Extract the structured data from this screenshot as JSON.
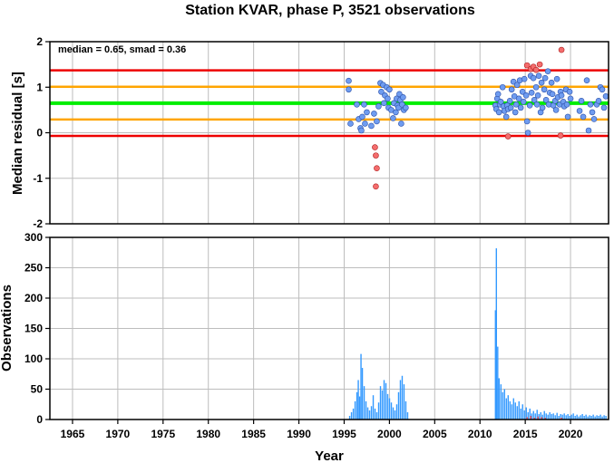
{
  "colors": {
    "blue_point": "#6f9cf0",
    "red_point": "#f46d6d",
    "bar": "#3399ff",
    "bar_red": "#ff5555",
    "median_line": "#00ee00",
    "smad_line": "#ffa500",
    "limit_line": "#ee0000",
    "grid": "#bdbdbd"
  },
  "chart_data": [
    {
      "type": "scatter",
      "title": "Station KVAR, phase P, 3521 observations",
      "ylabel": "Median residual [s]",
      "annotation": "median = 0.65, smad = 0.36",
      "xlim": [
        1962.5,
        2024.2
      ],
      "ylim": [
        -2,
        2
      ],
      "y_ticks": [
        -2,
        -1,
        0,
        1,
        2
      ],
      "grid": true,
      "reference_lines": [
        {
          "role": "median",
          "y": 0.65,
          "color": "#00ee00"
        },
        {
          "role": "smad_upper",
          "y": 1.01,
          "color": "#ffa500"
        },
        {
          "role": "smad_lower",
          "y": 0.29,
          "color": "#ffa500"
        },
        {
          "role": "limit_upper",
          "y": 1.37,
          "color": "#ee0000"
        },
        {
          "role": "limit_lower",
          "y": -0.07,
          "color": "#ee0000"
        }
      ],
      "points_normal": [
        [
          1995.5,
          1.14
        ],
        [
          1995.5,
          0.95
        ],
        [
          1995.7,
          0.2
        ],
        [
          1996.4,
          0.62
        ],
        [
          1996.6,
          0.3
        ],
        [
          1996.8,
          0.1
        ],
        [
          1996.9,
          0.05
        ],
        [
          1997.0,
          0.35
        ],
        [
          1997.2,
          0.62
        ],
        [
          1997.3,
          0.2
        ],
        [
          1997.5,
          0.45
        ],
        [
          1998.0,
          0.15
        ],
        [
          1998.3,
          0.42
        ],
        [
          1998.6,
          0.25
        ],
        [
          1998.8,
          0.58
        ],
        [
          1999.0,
          1.09
        ],
        [
          1999.1,
          0.9
        ],
        [
          1999.3,
          1.05
        ],
        [
          1999.4,
          0.65
        ],
        [
          1999.5,
          0.82
        ],
        [
          1999.7,
          1.0
        ],
        [
          1999.8,
          0.75
        ],
        [
          1999.9,
          0.55
        ],
        [
          2000.0,
          0.95
        ],
        [
          2000.2,
          0.5
        ],
        [
          2000.4,
          0.32
        ],
        [
          2000.5,
          0.65
        ],
        [
          2000.7,
          0.45
        ],
        [
          2000.8,
          0.75
        ],
        [
          2000.9,
          0.6
        ],
        [
          2001.0,
          0.55
        ],
        [
          2001.1,
          0.85
        ],
        [
          2001.2,
          0.72
        ],
        [
          2001.3,
          0.2
        ],
        [
          2001.4,
          0.62
        ],
        [
          2001.5,
          0.78
        ],
        [
          2001.6,
          0.5
        ],
        [
          2001.8,
          0.55
        ],
        [
          2011.7,
          0.6
        ],
        [
          2011.8,
          0.52
        ],
        [
          2011.9,
          0.75
        ],
        [
          2012.0,
          0.85
        ],
        [
          2012.1,
          0.45
        ],
        [
          2012.2,
          0.62
        ],
        [
          2012.3,
          0.68
        ],
        [
          2012.5,
          1.0
        ],
        [
          2012.6,
          0.58
        ],
        [
          2012.7,
          0.48
        ],
        [
          2012.9,
          0.35
        ],
        [
          2013.0,
          0.6
        ],
        [
          2013.1,
          0.52
        ],
        [
          2013.3,
          0.7
        ],
        [
          2013.4,
          0.55
        ],
        [
          2013.5,
          0.95
        ],
        [
          2013.7,
          1.12
        ],
        [
          2013.8,
          0.8
        ],
        [
          2013.9,
          0.45
        ],
        [
          2014.0,
          0.62
        ],
        [
          2014.1,
          1.05
        ],
        [
          2014.3,
          0.75
        ],
        [
          2014.4,
          1.15
        ],
        [
          2014.5,
          0.55
        ],
        [
          2014.7,
          0.9
        ],
        [
          2014.8,
          0.68
        ],
        [
          2014.9,
          1.18
        ],
        [
          2015.1,
          0.82
        ],
        [
          2015.2,
          0.25
        ],
        [
          2015.3,
          0.0
        ],
        [
          2015.5,
          0.6
        ],
        [
          2015.6,
          1.25
        ],
        [
          2015.7,
          0.88
        ],
        [
          2015.9,
          1.2
        ],
        [
          2016.0,
          0.72
        ],
        [
          2016.2,
          1.0
        ],
        [
          2016.3,
          0.62
        ],
        [
          2016.4,
          0.82
        ],
        [
          2016.5,
          1.25
        ],
        [
          2016.7,
          0.45
        ],
        [
          2016.8,
          1.1
        ],
        [
          2016.9,
          0.55
        ],
        [
          2017.1,
          0.95
        ],
        [
          2017.2,
          1.2
        ],
        [
          2017.3,
          0.72
        ],
        [
          2017.5,
          1.35
        ],
        [
          2017.6,
          0.62
        ],
        [
          2017.7,
          0.88
        ],
        [
          2017.9,
          1.1
        ],
        [
          2018.0,
          0.85
        ],
        [
          2018.1,
          0.6
        ],
        [
          2018.3,
          0.7
        ],
        [
          2018.4,
          0.5
        ],
        [
          2018.5,
          1.18
        ],
        [
          2018.6,
          0.78
        ],
        [
          2018.8,
          0.62
        ],
        [
          2018.9,
          0.9
        ],
        [
          2019.0,
          0.82
        ],
        [
          2019.2,
          0.68
        ],
        [
          2019.3,
          0.58
        ],
        [
          2019.5,
          0.95
        ],
        [
          2019.6,
          0.62
        ],
        [
          2019.7,
          0.35
        ],
        [
          2019.9,
          0.9
        ],
        [
          2020.0,
          0.75
        ],
        [
          2021.0,
          0.48
        ],
        [
          2021.2,
          0.7
        ],
        [
          2021.4,
          0.35
        ],
        [
          2021.8,
          1.15
        ],
        [
          2022.0,
          0.05
        ],
        [
          2022.2,
          0.62
        ],
        [
          2022.4,
          0.45
        ],
        [
          2022.6,
          0.3
        ],
        [
          2022.9,
          0.62
        ],
        [
          2023.1,
          0.7
        ],
        [
          2023.3,
          1.0
        ],
        [
          2023.5,
          0.95
        ],
        [
          2023.7,
          0.55
        ],
        [
          2023.9,
          0.8
        ]
      ],
      "points_outlier": [
        [
          1998.4,
          -0.32
        ],
        [
          1998.5,
          -0.5
        ],
        [
          1998.6,
          -0.78
        ],
        [
          1998.5,
          -1.18
        ],
        [
          2013.1,
          -0.08
        ],
        [
          2015.2,
          1.48
        ],
        [
          2015.6,
          1.4
        ],
        [
          2015.9,
          1.45
        ],
        [
          2016.2,
          1.38
        ],
        [
          2016.6,
          1.5
        ],
        [
          2018.9,
          -0.06
        ],
        [
          2019.0,
          1.82
        ]
      ]
    },
    {
      "type": "bar",
      "xlabel": "Year",
      "ylabel": "Observations",
      "xlim": [
        1962.5,
        2024.2
      ],
      "ylim": [
        0,
        300
      ],
      "y_ticks": [
        0,
        50,
        100,
        150,
        200,
        250,
        300
      ],
      "x_ticks": [
        1965,
        1970,
        1975,
        1980,
        1985,
        1990,
        1995,
        2000,
        2005,
        2010,
        2015,
        2020
      ],
      "grid": true,
      "bars": [
        [
          1995.6,
          6
        ],
        [
          1995.8,
          12
        ],
        [
          1996.0,
          18
        ],
        [
          1996.2,
          30
        ],
        [
          1996.4,
          45
        ],
        [
          1996.55,
          65
        ],
        [
          1996.7,
          38
        ],
        [
          1996.85,
          108
        ],
        [
          1997.0,
          85
        ],
        [
          1997.2,
          55
        ],
        [
          1997.4,
          30
        ],
        [
          1997.6,
          20
        ],
        [
          1997.8,
          15
        ],
        [
          1998.0,
          22
        ],
        [
          1998.2,
          40
        ],
        [
          1998.4,
          18
        ],
        [
          1998.6,
          12
        ],
        [
          1998.8,
          28
        ],
        [
          1999.0,
          55
        ],
        [
          1999.2,
          48
        ],
        [
          1999.4,
          65
        ],
        [
          1999.6,
          60
        ],
        [
          1999.8,
          42
        ],
        [
          2000.0,
          35
        ],
        [
          2000.2,
          28
        ],
        [
          2000.4,
          20
        ],
        [
          2000.6,
          15
        ],
        [
          2000.8,
          25
        ],
        [
          2001.0,
          45
        ],
        [
          2001.2,
          65
        ],
        [
          2001.4,
          72
        ],
        [
          2001.6,
          58
        ],
        [
          2001.8,
          30
        ],
        [
          2002.0,
          12
        ],
        [
          2011.7,
          180
        ],
        [
          2011.8,
          282
        ],
        [
          2011.95,
          120
        ],
        [
          2012.1,
          68
        ],
        [
          2012.3,
          58
        ],
        [
          2012.5,
          45
        ],
        [
          2012.7,
          50
        ],
        [
          2012.9,
          35
        ],
        [
          2013.1,
          40
        ],
        [
          2013.3,
          30
        ],
        [
          2013.5,
          25
        ],
        [
          2013.7,
          35
        ],
        [
          2013.9,
          28
        ],
        [
          2014.1,
          22
        ],
        [
          2014.3,
          30
        ],
        [
          2014.5,
          18
        ],
        [
          2014.7,
          25
        ],
        [
          2014.9,
          15
        ],
        [
          2015.1,
          20
        ],
        [
          2015.3,
          12
        ],
        [
          2015.5,
          18
        ],
        [
          2015.7,
          10
        ],
        [
          2015.9,
          14
        ],
        [
          2016.1,
          10
        ],
        [
          2016.3,
          16
        ],
        [
          2016.5,
          9
        ],
        [
          2016.7,
          12
        ],
        [
          2016.9,
          8
        ],
        [
          2017.1,
          14
        ],
        [
          2017.3,
          10
        ],
        [
          2017.5,
          8
        ],
        [
          2017.7,
          12
        ],
        [
          2017.9,
          9
        ],
        [
          2018.1,
          10
        ],
        [
          2018.3,
          7
        ],
        [
          2018.5,
          11
        ],
        [
          2018.7,
          6
        ],
        [
          2018.9,
          9
        ],
        [
          2019.1,
          8
        ],
        [
          2019.3,
          10
        ],
        [
          2019.5,
          7
        ],
        [
          2019.7,
          9
        ],
        [
          2019.9,
          6
        ],
        [
          2020.1,
          8
        ],
        [
          2020.3,
          10
        ],
        [
          2020.5,
          6
        ],
        [
          2020.7,
          8
        ],
        [
          2020.9,
          5
        ],
        [
          2021.1,
          7
        ],
        [
          2021.3,
          9
        ],
        [
          2021.5,
          6
        ],
        [
          2021.7,
          8
        ],
        [
          2021.9,
          5
        ],
        [
          2022.1,
          7
        ],
        [
          2022.3,
          6
        ],
        [
          2022.5,
          8
        ],
        [
          2022.7,
          5
        ],
        [
          2022.9,
          7
        ],
        [
          2023.1,
          6
        ],
        [
          2023.3,
          8
        ],
        [
          2023.5,
          5
        ],
        [
          2023.7,
          7
        ],
        [
          2023.9,
          6
        ]
      ],
      "bars_outlier": [
        [
          2015.2,
          4
        ],
        [
          2015.6,
          6
        ],
        [
          2016.0,
          3
        ],
        [
          2016.4,
          5
        ],
        [
          2016.8,
          4
        ],
        [
          2017.2,
          3
        ],
        [
          2018.9,
          2
        ],
        [
          2019.0,
          3
        ]
      ]
    }
  ]
}
